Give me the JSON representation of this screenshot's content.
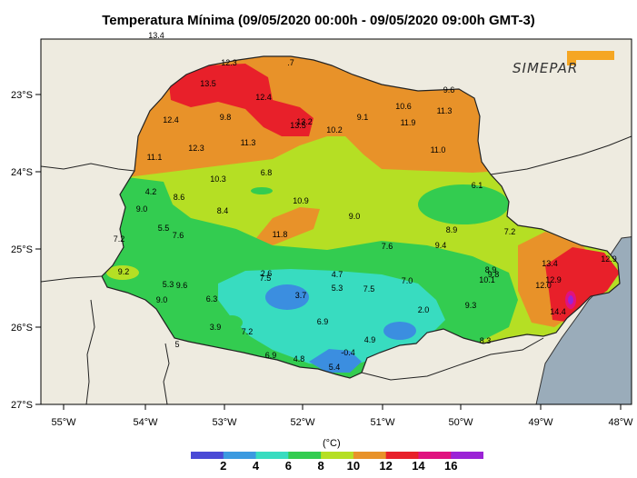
{
  "title": "Temperatura Mínima (09/05/2020 00:00h - 09/05/2020 09:00h GMT-3)",
  "logo": {
    "text": "SIMEPAR",
    "accent_color": "#f5a623"
  },
  "axes": {
    "longitude_ticks": [
      "55°W",
      "54°W",
      "53°W",
      "52°W",
      "51°W",
      "50°W",
      "49°W",
      "48°W"
    ],
    "latitude_ticks": [
      "23°S",
      "24°S",
      "25°S",
      "26°S",
      "27°S"
    ]
  },
  "colors": {
    "background_land": "#eeebe0",
    "ocean": "#9aacba",
    "class_2_4": "#3b8ee0",
    "class_4_6": "#38dcc0",
    "class_6_8": "#33cc50",
    "class_8_10": "#b5df24",
    "class_10_12": "#e89229",
    "class_12_14": "#e8202a",
    "class_14_16": "#e0127f",
    "class_16_plus": "#9b22d6"
  },
  "colorbar": {
    "unit": "(°C)",
    "labels": [
      "2",
      "4",
      "6",
      "8",
      "10",
      "12",
      "14",
      "16"
    ],
    "colors": [
      "#4a4ad6",
      "#3b9ae0",
      "#38dcc0",
      "#33cc50",
      "#b5df24",
      "#e89229",
      "#e8202a",
      "#e0127f",
      "#9b22d6"
    ]
  },
  "station_values": [
    "13.4",
    "12.3",
    ".7",
    "13.5",
    "12.4",
    "9.6",
    "10.6",
    "11.3",
    "12.4",
    "9.8",
    "13.2",
    "13.5",
    "9.1",
    "11.9",
    "10.2",
    "12.3",
    "11.3",
    "11.0",
    "11.1",
    "6.8",
    "10.3",
    "4.2",
    "8.6",
    "6.1",
    "10.9",
    "9.0",
    "8.4",
    "9.0",
    "8.9",
    "7.2",
    "5.5",
    "7.6",
    "11.8",
    "7.2",
    "7.6",
    "9.4",
    "13.4",
    "12.9",
    "9.2",
    "2.6",
    "7.5",
    "4.7",
    "8.9",
    "9.8",
    "5.3",
    "9.6",
    "5.3",
    "7.0",
    "7.5",
    "10.1",
    "12.9",
    "12.0",
    "3.7",
    "9.0",
    "6.3",
    "2.0",
    "9.3",
    "14.4",
    "6.9",
    "3.9",
    "7.2",
    "4.9",
    "5",
    "6.9",
    "4.8",
    "-0.4",
    "5.4",
    "8.3"
  ]
}
